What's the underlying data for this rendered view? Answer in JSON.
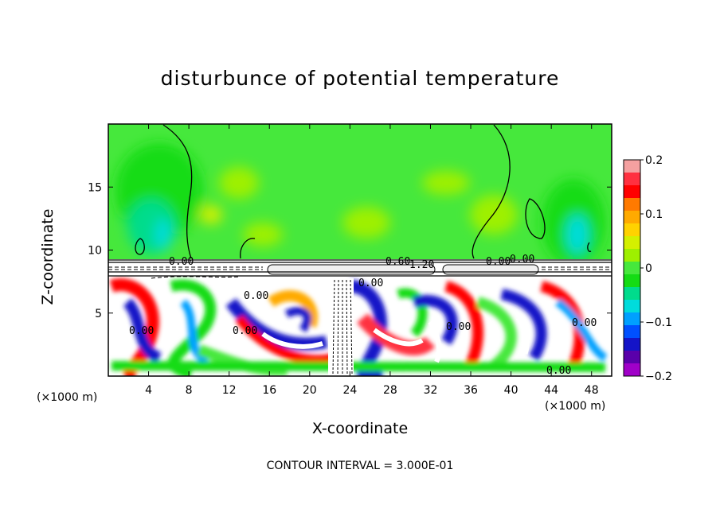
{
  "chart_data": {
    "type": "heatmap",
    "title": "disturbunce of potential temperature",
    "xlabel": "X-coordinate",
    "ylabel": "Z-coordinate",
    "x_units": "(×1000 m)",
    "z_units": "(×1000 m)",
    "footer": "CONTOUR INTERVAL = 3.000E-01",
    "xlim": [
      0,
      50
    ],
    "ylim": [
      0,
      20
    ],
    "x_ticks": [
      4,
      8,
      12,
      16,
      20,
      24,
      28,
      32,
      36,
      40,
      44,
      48
    ],
    "y_ticks": [
      5,
      10,
      15
    ],
    "colorbar": {
      "min": -0.2,
      "max": 0.2,
      "ticks": [
        "0.2",
        "0.1",
        "0",
        "−0.1",
        "−0.2"
      ],
      "colors": [
        "#f4a0a0",
        "#ff3040",
        "#ff0000",
        "#ff7a00",
        "#ffaa00",
        "#ffd200",
        "#d4f000",
        "#9ef000",
        "#46e83c",
        "#14dc14",
        "#00dc8c",
        "#00dcdc",
        "#00a0ff",
        "#0050ff",
        "#1414c8",
        "#5a00aa",
        "#a000c8"
      ]
    },
    "contour_labels": [
      "0.00",
      "0.00",
      "0.00",
      "0.00",
      "0.00",
      "0.00",
      "0.60",
      "1.20",
      "0.00",
      "0.00",
      "0.00",
      "0.00"
    ]
  }
}
